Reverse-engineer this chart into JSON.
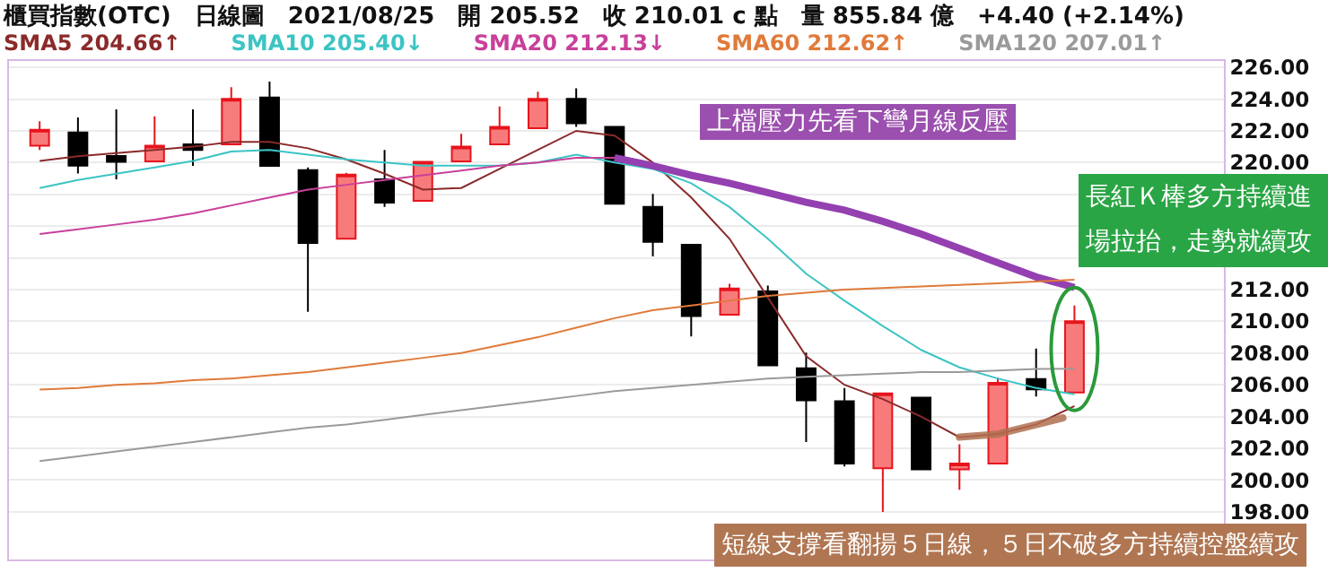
{
  "chart_data": {
    "type": "candlestick",
    "title": "櫃買指數(OTC)　日線圖　2021/08/25　開 205.52　收 210.01 c 點　量 855.84 億　+4.40 (+2.14%)",
    "categories": [
      null,
      null,
      null,
      null,
      null,
      null,
      null,
      null,
      null,
      null,
      null,
      null,
      null,
      null,
      null,
      null,
      null,
      null,
      null,
      null,
      null,
      null,
      null,
      null,
      null,
      null,
      null,
      null
    ],
    "ohlc": [
      [
        221.07,
        222.6,
        220.8,
        222.06
      ],
      [
        221.9,
        222.84,
        219.31,
        219.8
      ],
      [
        220.41,
        223.35,
        218.94,
        220.05
      ],
      [
        220.08,
        222.91,
        220.08,
        221.07
      ],
      [
        221.15,
        223.35,
        219.79,
        220.79
      ],
      [
        221.15,
        224.75,
        221.15,
        224.02
      ],
      [
        224.1,
        225.1,
        219.79,
        219.79
      ],
      [
        219.53,
        219.7,
        210.6,
        214.94
      ],
      [
        215.2,
        219.35,
        215.2,
        219.24
      ],
      [
        218.94,
        220.79,
        217.21,
        217.48
      ],
      [
        217.59,
        220.05,
        217.59,
        220.05
      ],
      [
        220.08,
        221.81,
        220.08,
        221.0
      ],
      [
        221.15,
        223.54,
        221.15,
        222.25
      ],
      [
        222.17,
        224.46,
        222.17,
        224.02
      ],
      [
        224.02,
        224.68,
        222.25,
        222.47
      ],
      [
        222.25,
        222.25,
        217.4,
        217.4
      ],
      [
        217.21,
        218.03,
        214.09,
        215.0
      ],
      [
        214.83,
        214.83,
        209.05,
        210.34
      ],
      [
        210.42,
        212.36,
        210.42,
        212.07
      ],
      [
        211.89,
        212.25,
        207.22,
        207.22
      ],
      [
        207.04,
        208.03,
        202.4,
        205.02
      ],
      [
        204.97,
        205.8,
        200.86,
        201.05
      ],
      [
        200.75,
        205.46,
        198.0,
        205.46
      ],
      [
        205.2,
        205.2,
        200.68,
        200.68
      ],
      [
        200.68,
        202.26,
        199.39,
        201.05
      ],
      [
        201.05,
        206.45,
        201.05,
        206.12
      ],
      [
        206.37,
        208.28,
        205.27,
        205.71
      ],
      [
        205.52,
        211.0,
        205.52,
        210.01
      ]
    ],
    "series": [
      {
        "name": "SMA5 204.66↑",
        "type": "line",
        "color": "#8b2a2a",
        "values": [
          220.1,
          220.4,
          220.6,
          220.8,
          221.0,
          221.3,
          221.3,
          220.9,
          220.2,
          219.3,
          218.3,
          218.4,
          219.6,
          220.8,
          222.0,
          221.7,
          220.0,
          217.8,
          215.2,
          211.5,
          207.8,
          206.0,
          205.1,
          204.0,
          202.7,
          202.9,
          203.5,
          204.66
        ]
      },
      {
        "name": "SMA10 205.40↓",
        "type": "line",
        "color": "#3cc4c4",
        "values": [
          218.4,
          218.9,
          219.3,
          219.7,
          220.1,
          220.7,
          220.8,
          220.5,
          220.2,
          220.0,
          219.8,
          219.8,
          219.8,
          220.0,
          220.5,
          220.0,
          219.6,
          218.7,
          217.2,
          215.2,
          213.0,
          211.3,
          209.7,
          208.2,
          207.1,
          206.4,
          205.8,
          205.4
        ]
      },
      {
        "name": "SMA20 212.13↓",
        "type": "line",
        "color": "#c8409a",
        "values": [
          215.5,
          215.8,
          216.1,
          216.4,
          216.8,
          217.3,
          217.8,
          218.3,
          218.6,
          218.9,
          219.2,
          219.5,
          219.8,
          220.0,
          220.3,
          220.3,
          219.8,
          219.2,
          218.7,
          218.1,
          217.5,
          217.0,
          216.3,
          215.5,
          214.6,
          213.7,
          212.8,
          212.13
        ]
      },
      {
        "type": "line",
        "color": "#9440b0",
        "values": [
          null,
          null,
          null,
          null,
          null,
          null,
          null,
          null,
          null,
          null,
          null,
          null,
          null,
          null,
          null,
          220.3,
          219.8,
          219.2,
          218.7,
          218.1,
          217.5,
          217.0,
          216.3,
          215.5,
          214.6,
          213.7,
          212.8,
          212.13
        ]
      },
      {
        "name": "SMA60 212.62↑",
        "type": "line",
        "color": "#e07a3a",
        "values": [
          205.7,
          205.8,
          206.0,
          206.1,
          206.3,
          206.4,
          206.6,
          206.8,
          207.1,
          207.4,
          207.7,
          208.0,
          208.5,
          209.0,
          209.6,
          210.2,
          210.7,
          211.0,
          211.3,
          211.6,
          211.8,
          212.0,
          212.1,
          212.2,
          212.3,
          212.4,
          212.5,
          212.62
        ]
      },
      {
        "name": "SMA120 207.01↑",
        "type": "line",
        "color": "#9a9a9a",
        "values": [
          201.2,
          201.5,
          201.8,
          202.1,
          202.4,
          202.7,
          203.0,
          203.3,
          203.5,
          203.8,
          204.1,
          204.4,
          204.7,
          205.0,
          205.3,
          205.6,
          205.8,
          206.0,
          206.2,
          206.4,
          206.5,
          206.6,
          206.7,
          206.8,
          206.8,
          206.9,
          207.0,
          207.01
        ]
      }
    ],
    "ylim": [
      195.0,
      226.4
    ],
    "yticks": [
      {
        "value": 198,
        "label": "198.00"
      },
      {
        "value": 200,
        "label": "200.00"
      },
      {
        "value": 202,
        "label": "202.00"
      },
      {
        "value": 204,
        "label": "204.00"
      },
      {
        "value": 206,
        "label": "206.00"
      },
      {
        "value": 208,
        "label": "208.00"
      },
      {
        "value": 210,
        "label": "210.00"
      },
      {
        "value": 212,
        "label": "212.00"
      },
      {
        "value": 214,
        "label": null
      },
      {
        "value": 216,
        "label": null
      },
      {
        "value": 218,
        "label": null
      },
      {
        "value": 220,
        "label": "220.00"
      },
      {
        "value": 222,
        "label": "222.00"
      },
      {
        "value": 224,
        "label": "224.00"
      },
      {
        "value": 226,
        "label": "226.00"
      }
    ],
    "grid": "y",
    "legend": "top left",
    "tick_labels": "y",
    "annotations": [
      "上檔壓力先看下彎月線反壓",
      "長紅Ｋ棒多方持續進場拉抬，走勢就續攻",
      "短線支撐看翻揚５日線，５日不破多方持續控盤續攻"
    ]
  }
}
